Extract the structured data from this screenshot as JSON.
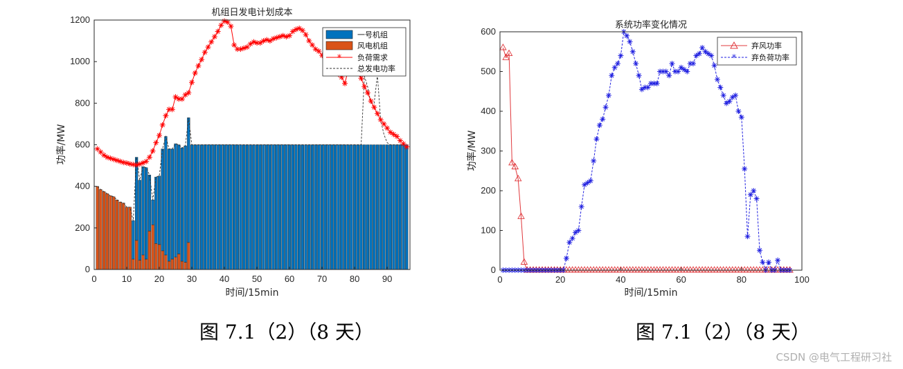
{
  "chart_data": [
    {
      "type": "bar",
      "title": "机组日发电计划成本",
      "xlabel": "时间/15min",
      "ylabel": "功率/MW",
      "xlim": [
        0,
        97
      ],
      "ylim": [
        0,
        1200
      ],
      "xticks": [
        "0",
        "10",
        "20",
        "30",
        "40",
        "50",
        "60",
        "70",
        "80",
        "90"
      ],
      "yticks": [
        "0",
        "200",
        "400",
        "600",
        "800",
        "1000",
        "1200"
      ],
      "legend_position": "top-right",
      "stacked": true,
      "x": [
        1,
        2,
        3,
        4,
        5,
        6,
        7,
        8,
        9,
        10,
        11,
        12,
        13,
        14,
        15,
        16,
        17,
        18,
        19,
        20,
        21,
        22,
        23,
        24,
        25,
        26,
        27,
        28,
        29,
        30,
        31,
        32,
        33,
        34,
        35,
        36,
        37,
        38,
        39,
        40,
        41,
        42,
        43,
        44,
        45,
        46,
        47,
        48,
        49,
        50,
        51,
        52,
        53,
        54,
        55,
        56,
        57,
        58,
        59,
        60,
        61,
        62,
        63,
        64,
        65,
        66,
        67,
        68,
        69,
        70,
        71,
        72,
        73,
        74,
        75,
        76,
        77,
        78,
        79,
        80,
        81,
        82,
        83,
        84,
        85,
        86,
        87,
        88,
        89,
        90,
        91,
        92,
        93,
        94,
        95,
        96
      ],
      "series": [
        {
          "name": "一号机组",
          "kind": "bar",
          "color": "#0072BD",
          "values": [
            0,
            0,
            0,
            0,
            0,
            0,
            0,
            0,
            0,
            0,
            0,
            185,
            400,
            385,
            425,
            440,
            270,
            120,
            320,
            330,
            490,
            570,
            540,
            530,
            545,
            525,
            545,
            560,
            600,
            600,
            600,
            600,
            600,
            600,
            600,
            600,
            600,
            600,
            600,
            600,
            600,
            600,
            600,
            600,
            600,
            600,
            600,
            600,
            600,
            600,
            600,
            600,
            600,
            600,
            600,
            600,
            600,
            600,
            600,
            600,
            600,
            600,
            600,
            600,
            600,
            600,
            600,
            600,
            600,
            600,
            600,
            600,
            600,
            600,
            600,
            600,
            600,
            600,
            600,
            600,
            600,
            600,
            600,
            600,
            600,
            600,
            600,
            600,
            600,
            600,
            600,
            600,
            600,
            600,
            600,
            600
          ]
        },
        {
          "name": "风电机组",
          "kind": "bar",
          "color": "#D95319",
          "values": [
            400,
            385,
            375,
            365,
            355,
            350,
            335,
            325,
            320,
            300,
            300,
            50,
            140,
            45,
            70,
            50,
            185,
            215,
            125,
            120,
            90,
            70,
            40,
            50,
            60,
            75,
            40,
            35,
            130,
            0,
            0,
            0,
            0,
            0,
            0,
            0,
            0,
            0,
            0,
            0,
            0,
            0,
            0,
            0,
            0,
            0,
            0,
            0,
            0,
            0,
            0,
            0,
            0,
            0,
            0,
            0,
            0,
            0,
            0,
            0,
            0,
            0,
            0,
            0,
            0,
            0,
            0,
            0,
            0,
            0,
            0,
            0,
            0,
            0,
            0,
            0,
            0,
            0,
            0,
            0,
            0,
            0,
            0,
            0,
            0,
            0,
            0,
            0,
            0,
            0,
            0,
            0,
            0,
            0,
            0,
            0
          ]
        },
        {
          "name": "负荷需求",
          "kind": "line",
          "color": "#FF0000",
          "marker": "*",
          "values": [
            580,
            565,
            550,
            540,
            535,
            530,
            525,
            520,
            515,
            512,
            508,
            505,
            503,
            507,
            513,
            520,
            540,
            570,
            610,
            645,
            695,
            740,
            770,
            770,
            830,
            820,
            820,
            840,
            850,
            900,
            945,
            980,
            1010,
            1045,
            1070,
            1095,
            1120,
            1145,
            1175,
            1195,
            1190,
            1170,
            1080,
            1060,
            1060,
            1065,
            1070,
            1085,
            1095,
            1090,
            1090,
            1100,
            1105,
            1100,
            1110,
            1115,
            1120,
            1125,
            1120,
            1125,
            1145,
            1155,
            1160,
            1150,
            1130,
            1100,
            1080,
            1060,
            1050,
            1030,
            1020,
            1000,
            975,
            960,
            940,
            925,
            895,
            960,
            1010,
            1000,
            960,
            920,
            880,
            850,
            810,
            780,
            750,
            720,
            700,
            680,
            660,
            650,
            640,
            620,
            605,
            590
          ]
        },
        {
          "name": "总发电功率",
          "kind": "line",
          "color": "#333333",
          "dash": true,
          "values": [
            400,
            385,
            375,
            365,
            355,
            350,
            335,
            325,
            320,
            300,
            300,
            235,
            540,
            430,
            495,
            490,
            455,
            335,
            445,
            450,
            580,
            640,
            580,
            580,
            605,
            600,
            585,
            595,
            730,
            600,
            600,
            600,
            600,
            600,
            600,
            600,
            600,
            600,
            600,
            600,
            600,
            600,
            600,
            600,
            600,
            600,
            600,
            600,
            600,
            600,
            600,
            600,
            600,
            600,
            600,
            600,
            600,
            600,
            600,
            600,
            600,
            600,
            600,
            600,
            600,
            600,
            600,
            600,
            600,
            600,
            600,
            600,
            600,
            600,
            600,
            600,
            600,
            600,
            600,
            600,
            600,
            600,
            930,
            880,
            800,
            800,
            935,
            720,
            650,
            610,
            600,
            600,
            600,
            600,
            600,
            600
          ]
        }
      ]
    },
    {
      "type": "line",
      "title": "系统功率变化情况",
      "xlabel": "时间/15min",
      "ylabel": "功率/MW",
      "xlim": [
        0,
        100
      ],
      "ylim": [
        0,
        600
      ],
      "xticks": [
        "0",
        "20",
        "40",
        "60",
        "80",
        "100"
      ],
      "yticks": [
        "0",
        "100",
        "200",
        "300",
        "400",
        "500",
        "600"
      ],
      "legend_position": "top-right",
      "x": [
        1,
        2,
        3,
        4,
        5,
        6,
        7,
        8,
        9,
        10,
        11,
        12,
        13,
        14,
        15,
        16,
        17,
        18,
        19,
        20,
        21,
        22,
        23,
        24,
        25,
        26,
        27,
        28,
        29,
        30,
        31,
        32,
        33,
        34,
        35,
        36,
        37,
        38,
        39,
        40,
        41,
        42,
        43,
        44,
        45,
        46,
        47,
        48,
        49,
        50,
        51,
        52,
        53,
        54,
        55,
        56,
        57,
        58,
        59,
        60,
        61,
        62,
        63,
        64,
        65,
        66,
        67,
        68,
        69,
        70,
        71,
        72,
        73,
        74,
        75,
        76,
        77,
        78,
        79,
        80,
        81,
        82,
        83,
        84,
        85,
        86,
        87,
        88,
        89,
        90,
        91,
        92,
        93,
        94,
        95,
        96
      ],
      "series": [
        {
          "name": "弃风功率",
          "color": "#E0383C",
          "marker": "triangle",
          "dash": false,
          "values": [
            560,
            535,
            545,
            270,
            260,
            230,
            135,
            20,
            0,
            0,
            0,
            0,
            0,
            0,
            0,
            0,
            0,
            0,
            0,
            0,
            0,
            0,
            0,
            0,
            0,
            0,
            0,
            0,
            0,
            0,
            0,
            0,
            0,
            0,
            0,
            0,
            0,
            0,
            0,
            0,
            0,
            0,
            0,
            0,
            0,
            0,
            0,
            0,
            0,
            0,
            0,
            0,
            0,
            0,
            0,
            0,
            0,
            0,
            0,
            0,
            0,
            0,
            0,
            0,
            0,
            0,
            0,
            0,
            0,
            0,
            0,
            0,
            0,
            0,
            0,
            0,
            0,
            0,
            0,
            0,
            0,
            0,
            0,
            0,
            0,
            0,
            0,
            0,
            0,
            0,
            0,
            0,
            0,
            0,
            0,
            0
          ]
        },
        {
          "name": "弃负荷功率",
          "color": "#1F1FE0",
          "marker": "star",
          "dash": true,
          "values": [
            0,
            0,
            0,
            0,
            0,
            0,
            0,
            0,
            0,
            0,
            0,
            0,
            0,
            0,
            0,
            0,
            0,
            0,
            0,
            0,
            0,
            30,
            70,
            80,
            95,
            100,
            160,
            215,
            220,
            225,
            275,
            330,
            365,
            380,
            410,
            440,
            490,
            510,
            520,
            540,
            600,
            590,
            575,
            550,
            520,
            490,
            455,
            460,
            460,
            470,
            470,
            470,
            500,
            500,
            500,
            490,
            520,
            500,
            500,
            510,
            505,
            500,
            520,
            520,
            540,
            545,
            560,
            550,
            545,
            540,
            515,
            480,
            460,
            440,
            420,
            425,
            435,
            440,
            400,
            385,
            255,
            85,
            190,
            200,
            180,
            50,
            20,
            0,
            20,
            0,
            0,
            25,
            0,
            0,
            0,
            0
          ]
        }
      ]
    }
  ],
  "captions": [
    "图 7.1（2）（8 天）",
    "图 7.1（2）（8 天）"
  ],
  "watermark": "CSDN @电气工程研习社"
}
